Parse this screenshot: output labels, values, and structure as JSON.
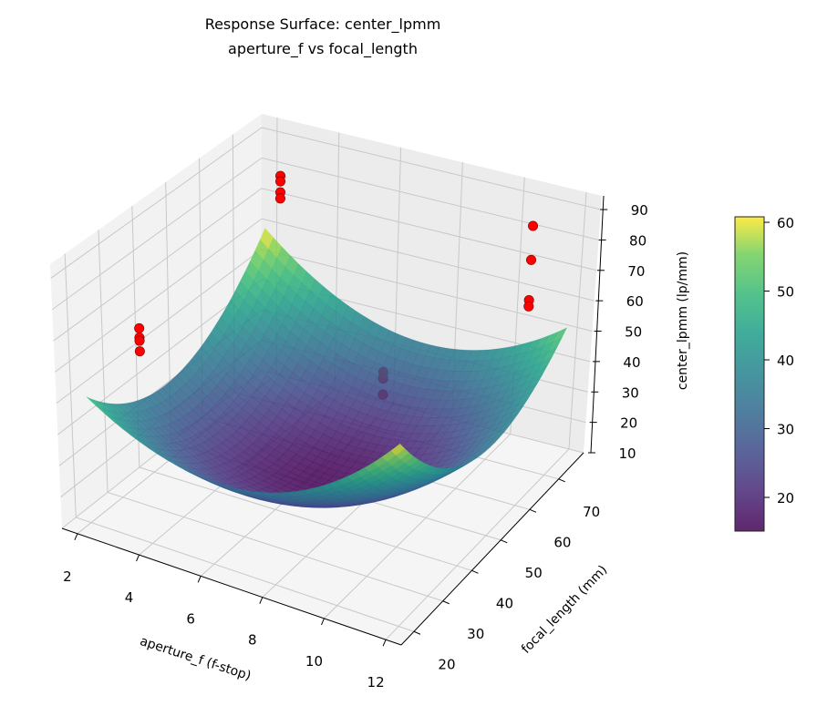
{
  "chart_data": {
    "type": "surface3d",
    "title_line1": "Response Surface: center_lpmm",
    "title_line2": "aperture_f vs focal_length",
    "xlabel": "aperture_f (f-stop)",
    "ylabel": "focal_length (mm)",
    "zlabel": "center_lpmm (lp/mm)",
    "xlim": [
      1.5,
      12.5
    ],
    "ylim": [
      15.6,
      78.6
    ],
    "zlim": [
      10,
      94.5
    ],
    "xticks": [
      2,
      4,
      6,
      8,
      10,
      12
    ],
    "yticks": [
      20,
      30,
      40,
      50,
      60,
      70
    ],
    "zticks": [
      10,
      20,
      30,
      40,
      50,
      60,
      70,
      80,
      90
    ],
    "grid": true,
    "colormap": "viridis",
    "surface": {
      "x_range": [
        2,
        12
      ],
      "y_range": [
        20,
        75
      ],
      "corner_values": {
        "x2_y20": 50,
        "x12_y20": 61,
        "x2_y75": 61,
        "x12_y75": 53
      },
      "minimum": 15.5
    },
    "colorbar": {
      "min": 15.1,
      "max": 60.8,
      "ticks": [
        20,
        30,
        40,
        50,
        60
      ]
    },
    "points": [
      {
        "x": 2,
        "y": 36.5,
        "z": 59
      },
      {
        "x": 2,
        "y": 36.5,
        "z": 56
      },
      {
        "x": 2,
        "y": 36.5,
        "z": 55
      },
      {
        "x": 2,
        "y": 36.5,
        "z": 51.6
      },
      {
        "x": 2.5,
        "y": 75,
        "z": 79.4
      },
      {
        "x": 2.5,
        "y": 75,
        "z": 77.6
      },
      {
        "x": 2.5,
        "y": 75,
        "z": 74
      },
      {
        "x": 2.5,
        "y": 75,
        "z": 72
      },
      {
        "x": 11,
        "y": 72,
        "z": 86
      },
      {
        "x": 11,
        "y": 72,
        "z": 75
      },
      {
        "x": 11,
        "y": 72,
        "z": 62
      },
      {
        "x": 11,
        "y": 72,
        "z": 60
      },
      {
        "x": 8.5,
        "y": 50,
        "z": 51,
        "hidden": true
      },
      {
        "x": 8.5,
        "y": 50,
        "z": 49,
        "hidden": true
      },
      {
        "x": 8.5,
        "y": 50,
        "z": 44,
        "hidden": true
      }
    ],
    "point_color": "#ff0000"
  }
}
